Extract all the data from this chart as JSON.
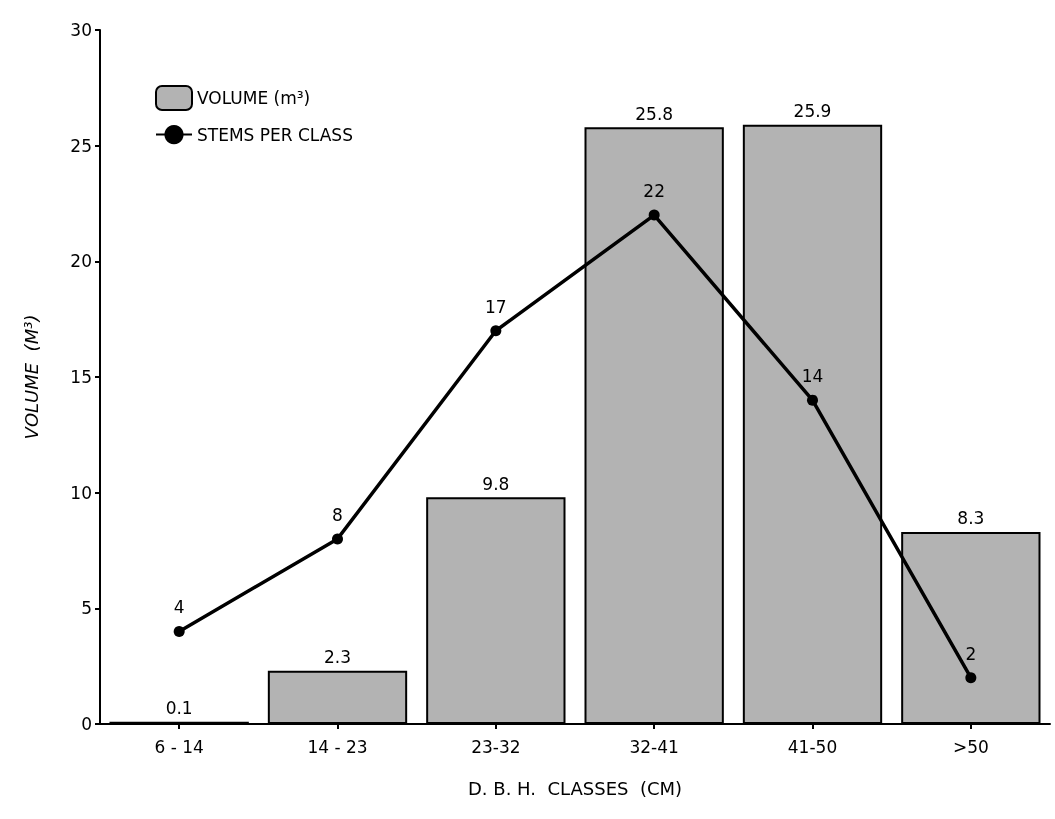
{
  "chart_data": {
    "type": "bar",
    "xlabel": "D. B. H.  CLASSES  (CM)",
    "ylabel": "VOLUME  (M³)",
    "categories": [
      "6 - 14",
      "14 - 23",
      "23-32",
      "32-41",
      "41-50",
      ">50"
    ],
    "series": [
      {
        "name": "VOLUME (m³)",
        "color": "#b3b3b3",
        "values": [
          0.1,
          2.3,
          9.8,
          25.8,
          25.9,
          8.3
        ]
      },
      {
        "name": "STEMS PER CLASS",
        "type": "line",
        "color": "#000000",
        "values": [
          4,
          8,
          17,
          22,
          14,
          2
        ]
      }
    ],
    "ylim": [
      0,
      30
    ],
    "yticks": [
      0,
      5,
      10,
      15,
      20,
      25,
      30
    ],
    "grid": false,
    "legend": "top left",
    "marker": "circle",
    "line_style": "solid",
    "data_labels": true
  }
}
